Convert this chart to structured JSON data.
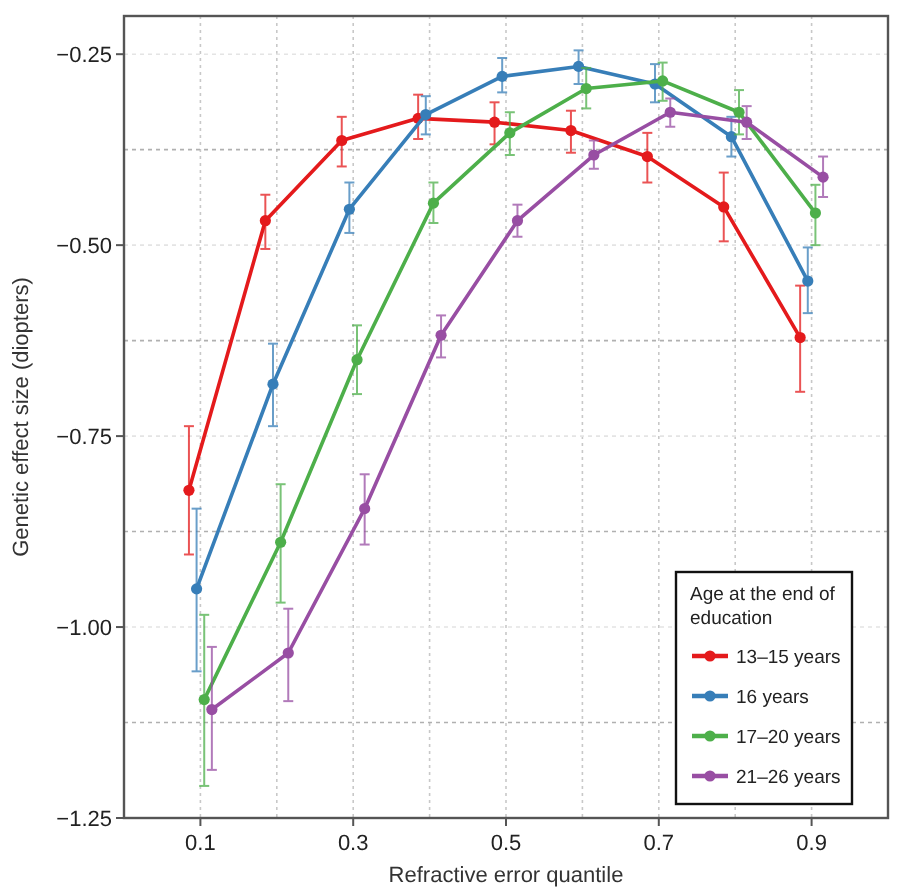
{
  "chart_data": {
    "type": "line",
    "xlabel": "Refractive error quantile",
    "ylabel": "Genetic effect size (diopters)",
    "legend_title": "Age at the end of education",
    "xlim": [
      0,
      1
    ],
    "xticks": [
      0.1,
      {
        "value": 0.2,
        "label": null
      },
      0.3,
      {
        "value": 0.4,
        "label": null
      },
      0.5,
      {
        "value": 0.6,
        "label": null
      },
      0.7,
      {
        "value": 0.8,
        "label": null
      },
      0.9
    ],
    "ylim": [
      -1.25,
      -0.2
    ],
    "yticks": [
      {
        "value": -1.25,
        "label": "−1.25"
      },
      {
        "value": -1.125,
        "label": null
      },
      {
        "value": -1.0,
        "label": "−1.00"
      },
      {
        "value": -0.875,
        "label": null
      },
      {
        "value": -0.75,
        "label": "−0.75"
      },
      {
        "value": -0.625,
        "label": null
      },
      {
        "value": -0.5,
        "label": "−0.50"
      },
      {
        "value": -0.375,
        "label": null
      },
      {
        "value": -0.25,
        "label": "−0.25"
      }
    ],
    "grid": true,
    "legend": "bottom right",
    "marker": "circle",
    "line_style": "solid",
    "series": [
      {
        "name": "13–15 years",
        "color": "#e41a1c",
        "x": [
          0.085,
          0.185,
          0.285,
          0.385,
          0.485,
          0.585,
          0.685,
          0.785,
          0.885
        ],
        "values": [
          -0.821,
          -0.468,
          -0.363,
          -0.334,
          -0.339,
          -0.35,
          -0.384,
          -0.45,
          -0.621
        ],
        "errors": [
          [
            -0.905,
            -0.737
          ],
          [
            -0.505,
            -0.434
          ],
          [
            -0.397,
            -0.332
          ],
          [
            -0.361,
            -0.303
          ],
          [
            -0.368,
            -0.313
          ],
          [
            -0.379,
            -0.324
          ],
          [
            -0.418,
            -0.353
          ],
          [
            -0.495,
            -0.405
          ],
          [
            -0.692,
            -0.553
          ]
        ]
      },
      {
        "name": "16 years",
        "color": "#377eb8",
        "x": [
          0.095,
          0.195,
          0.295,
          0.395,
          0.495,
          0.595,
          0.695,
          0.795,
          0.895
        ],
        "values": [
          -0.95,
          -0.682,
          -0.453,
          -0.329,
          -0.279,
          -0.266,
          -0.289,
          -0.358,
          -0.547
        ],
        "errors": [
          [
            -1.058,
            -0.845
          ],
          [
            -0.737,
            -0.629
          ],
          [
            -0.484,
            -0.418
          ],
          [
            -0.355,
            -0.305
          ],
          [
            -0.3,
            -0.255
          ],
          [
            -0.289,
            -0.245
          ],
          [
            -0.313,
            -0.263
          ],
          [
            -0.384,
            -0.332
          ],
          [
            -0.589,
            -0.503
          ]
        ]
      },
      {
        "name": "17–20 years",
        "color": "#4daf4a",
        "x": [
          0.105,
          0.205,
          0.305,
          0.405,
          0.505,
          0.605,
          0.705,
          0.805,
          0.905
        ],
        "values": [
          -1.095,
          -0.889,
          -0.65,
          -0.445,
          -0.353,
          -0.295,
          -0.285,
          -0.326,
          -0.458
        ],
        "errors": [
          [
            -1.208,
            -0.984
          ],
          [
            -0.968,
            -0.813
          ],
          [
            -0.695,
            -0.605
          ],
          [
            -0.471,
            -0.418
          ],
          [
            -0.382,
            -0.326
          ],
          [
            -0.321,
            -0.268
          ],
          [
            -0.311,
            -0.261
          ],
          [
            -0.355,
            -0.297
          ],
          [
            -0.5,
            -0.421
          ]
        ]
      },
      {
        "name": "21–26 years",
        "color": "#984ea3",
        "x": [
          0.115,
          0.215,
          0.315,
          0.415,
          0.515,
          0.615,
          0.715,
          0.815,
          0.915
        ],
        "values": [
          -1.108,
          -1.034,
          -0.845,
          -0.618,
          -0.468,
          -0.382,
          -0.326,
          -0.339,
          -0.411
        ],
        "errors": [
          [
            -1.187,
            -1.026
          ],
          [
            -1.097,
            -0.976
          ],
          [
            -0.892,
            -0.8
          ],
          [
            -0.647,
            -0.592
          ],
          [
            -0.489,
            -0.447
          ],
          [
            -0.4,
            -0.363
          ],
          [
            -0.345,
            -0.308
          ],
          [
            -0.361,
            -0.318
          ],
          [
            -0.437,
            -0.384
          ]
        ]
      }
    ]
  }
}
